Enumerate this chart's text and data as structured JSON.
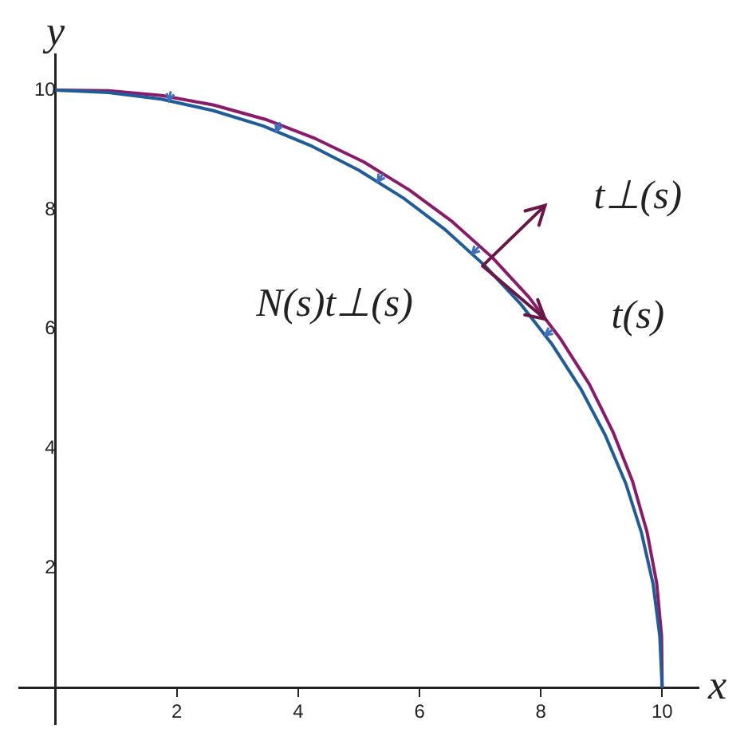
{
  "chart_data": {
    "type": "line",
    "xlabel": "x",
    "ylabel": "y",
    "xlim": [
      -0.6,
      10.6
    ],
    "ylim": [
      -0.6,
      10.6
    ],
    "xticks": [
      2,
      4,
      6,
      8,
      10
    ],
    "yticks": [
      2,
      4,
      6,
      8,
      10
    ],
    "grid": false,
    "legend": false,
    "marker": "none",
    "line_style": "solid",
    "series": [
      {
        "color": "#1f5d9a",
        "x": [
          10,
          9.96,
          9.85,
          9.66,
          9.4,
          9.06,
          8.66,
          8.19,
          7.66,
          7.07,
          6.43,
          5.74,
          5,
          4.23,
          3.42,
          2.59,
          1.74,
          0.87,
          0
        ],
        "values": [
          0,
          0.87,
          1.74,
          2.59,
          3.42,
          4.23,
          5,
          5.74,
          6.43,
          7.07,
          7.66,
          8.19,
          8.66,
          9.06,
          9.4,
          9.66,
          9.85,
          9.96,
          10
        ]
      },
      {
        "color": "#8b1a6b",
        "x": [
          10,
          9.99,
          9.91,
          9.75,
          9.51,
          9.19,
          8.8,
          8.33,
          7.8,
          7.2,
          6.54,
          5.83,
          5.08,
          4.28,
          3.46,
          2.61,
          1.75,
          0.87,
          0
        ],
        "values": [
          0,
          0.87,
          1.75,
          2.61,
          3.46,
          4.28,
          5.08,
          5.83,
          6.54,
          7.2,
          7.8,
          8.33,
          8.8,
          9.19,
          9.51,
          9.75,
          9.91,
          9.99,
          10
        ]
      }
    ],
    "annotations": [
      "N(s)t⊥(s)",
      "t⊥(s)",
      "t(s)"
    ]
  }
}
